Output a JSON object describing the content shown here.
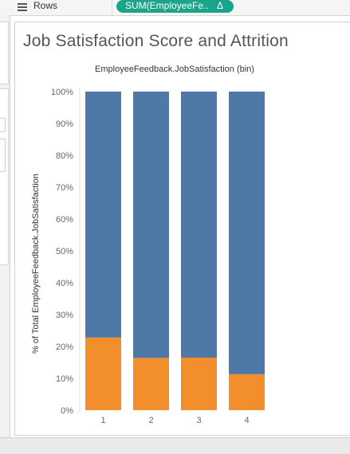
{
  "shelf": {
    "rows_icon": "list-icon",
    "rows_label": "Rows",
    "pill_text": "SUM(EmployeeFe..",
    "pill_delta": "Δ",
    "pill_color": "#1aa58a"
  },
  "sheet": {
    "title": "Job Satisfaction Score and Attrition"
  },
  "chart_data": {
    "type": "bar",
    "stacked": true,
    "header_label": "EmployeeFeedback.JobSatisfaction (bin)",
    "ylabel": "% of Total EmployeeFeedback.JobSatisfaction",
    "categories": [
      "1",
      "2",
      "3",
      "4"
    ],
    "ylim": [
      0,
      100
    ],
    "yticks": [
      0,
      10,
      20,
      30,
      40,
      50,
      60,
      70,
      80,
      90,
      100
    ],
    "ytick_labels": [
      "0%",
      "10%",
      "20%",
      "30%",
      "40%",
      "50%",
      "60%",
      "70%",
      "80%",
      "90%",
      "100%"
    ],
    "series": [
      {
        "color": "#f28e2b",
        "values": [
          22.8,
          16.4,
          16.5,
          11.3
        ]
      },
      {
        "color": "#4e79a7",
        "values": [
          77.2,
          83.6,
          83.5,
          88.7
        ]
      }
    ],
    "grid": false
  }
}
